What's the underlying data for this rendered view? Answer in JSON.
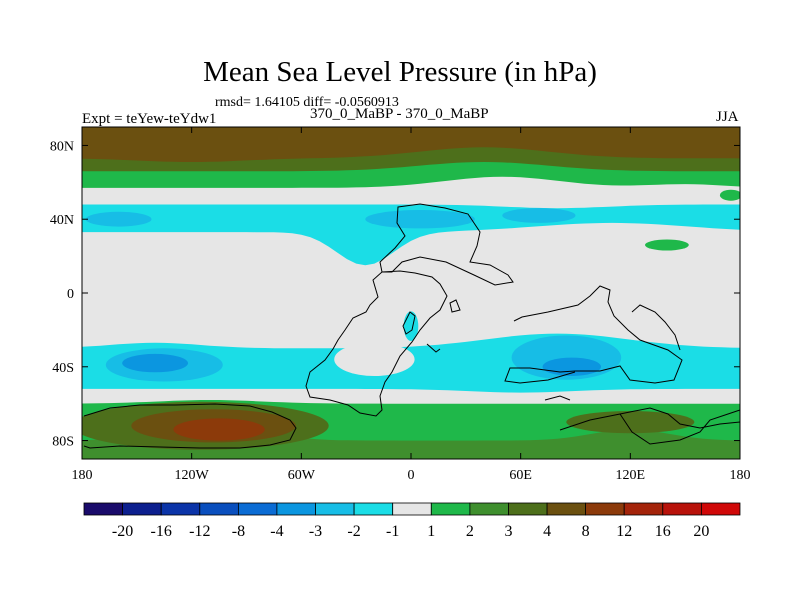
{
  "header": {
    "title": "Mean Sea Level Pressure (in hPa)",
    "stats": "rmsd= 1.64105 diff= -0.0560913",
    "experiment": "Expt = teYew-teYdw1",
    "comparison": "370_0_MaBP - 370_0_MaBP",
    "season": "JJA"
  },
  "chart_data": {
    "type": "heatmap",
    "title": "Mean Sea Level Pressure (in hPa)",
    "subtitle": "370_0_MaBP - 370_0_MaBP",
    "xlabel": "",
    "ylabel": "",
    "xlim": [
      -180,
      180
    ],
    "ylim": [
      -90,
      90
    ],
    "x_ticks": [
      {
        "value": -180,
        "label": "180"
      },
      {
        "value": -120,
        "label": "120W"
      },
      {
        "value": -60,
        "label": "60W"
      },
      {
        "value": 0,
        "label": "0"
      },
      {
        "value": 60,
        "label": "60E"
      },
      {
        "value": 120,
        "label": "120E"
      },
      {
        "value": 180,
        "label": "180"
      }
    ],
    "y_ticks": [
      {
        "value": 80,
        "label": "80N"
      },
      {
        "value": 40,
        "label": "40N"
      },
      {
        "value": 0,
        "label": "0"
      },
      {
        "value": -40,
        "label": "40S"
      },
      {
        "value": -80,
        "label": "80S"
      }
    ],
    "colorbar": {
      "levels": [
        "-20",
        "-16",
        "-12",
        "-8",
        "-4",
        "-3",
        "-2",
        "-1",
        "1",
        "2",
        "3",
        "4",
        "8",
        "12",
        "16",
        "20"
      ],
      "colors": [
        "#1a0b6b",
        "#0c1f8e",
        "#0b34a8",
        "#0a4fbe",
        "#0b6cd4",
        "#0b96e0",
        "#17bde6",
        "#1bdde6",
        "#e6e6e6",
        "#1fb84a",
        "#3f8f2e",
        "#4d6f1b",
        "#6b5010",
        "#8c3a0a",
        "#a4240a",
        "#b8120a",
        "#d00808"
      ]
    },
    "bands": [
      {
        "lat_from": 90,
        "lat_to": 72,
        "level": "4 to 8"
      },
      {
        "lat_from": 72,
        "lat_to": 64,
        "level": "3 to 4"
      },
      {
        "lat_from": 64,
        "lat_to": 55,
        "level": "1 to 2"
      },
      {
        "lat_from": 55,
        "lat_to": 48,
        "level": "-1 to 1"
      },
      {
        "lat_from": 48,
        "lat_to": 32,
        "level": "-2 to -1"
      },
      {
        "lat_from": 32,
        "lat_to": -28,
        "level": "-1 to 1"
      },
      {
        "lat_from": -28,
        "lat_to": -52,
        "level": "-2 to -1"
      },
      {
        "lat_from": -52,
        "lat_to": -62,
        "level": "-1 to 1"
      },
      {
        "lat_from": -62,
        "lat_to": -90,
        "level": "1 to 3"
      }
    ],
    "anomalies": [
      {
        "name": "south-pacific-low",
        "lon": -135,
        "lat": -39,
        "min_level": "-4 to -3"
      },
      {
        "name": "indian-ocean-low",
        "lon": 85,
        "lat": -35,
        "min_level": "-4 to -3"
      },
      {
        "name": "north-atlantic-low",
        "lon": 0,
        "lat": 40,
        "min_level": "-3 to -2"
      },
      {
        "name": "north-pacific-low",
        "lon": -160,
        "lat": 40,
        "min_level": "-3 to -2"
      },
      {
        "name": "south-pacific-high",
        "lon": -105,
        "lat": -74,
        "min_level": "8 to 12"
      }
    ]
  }
}
